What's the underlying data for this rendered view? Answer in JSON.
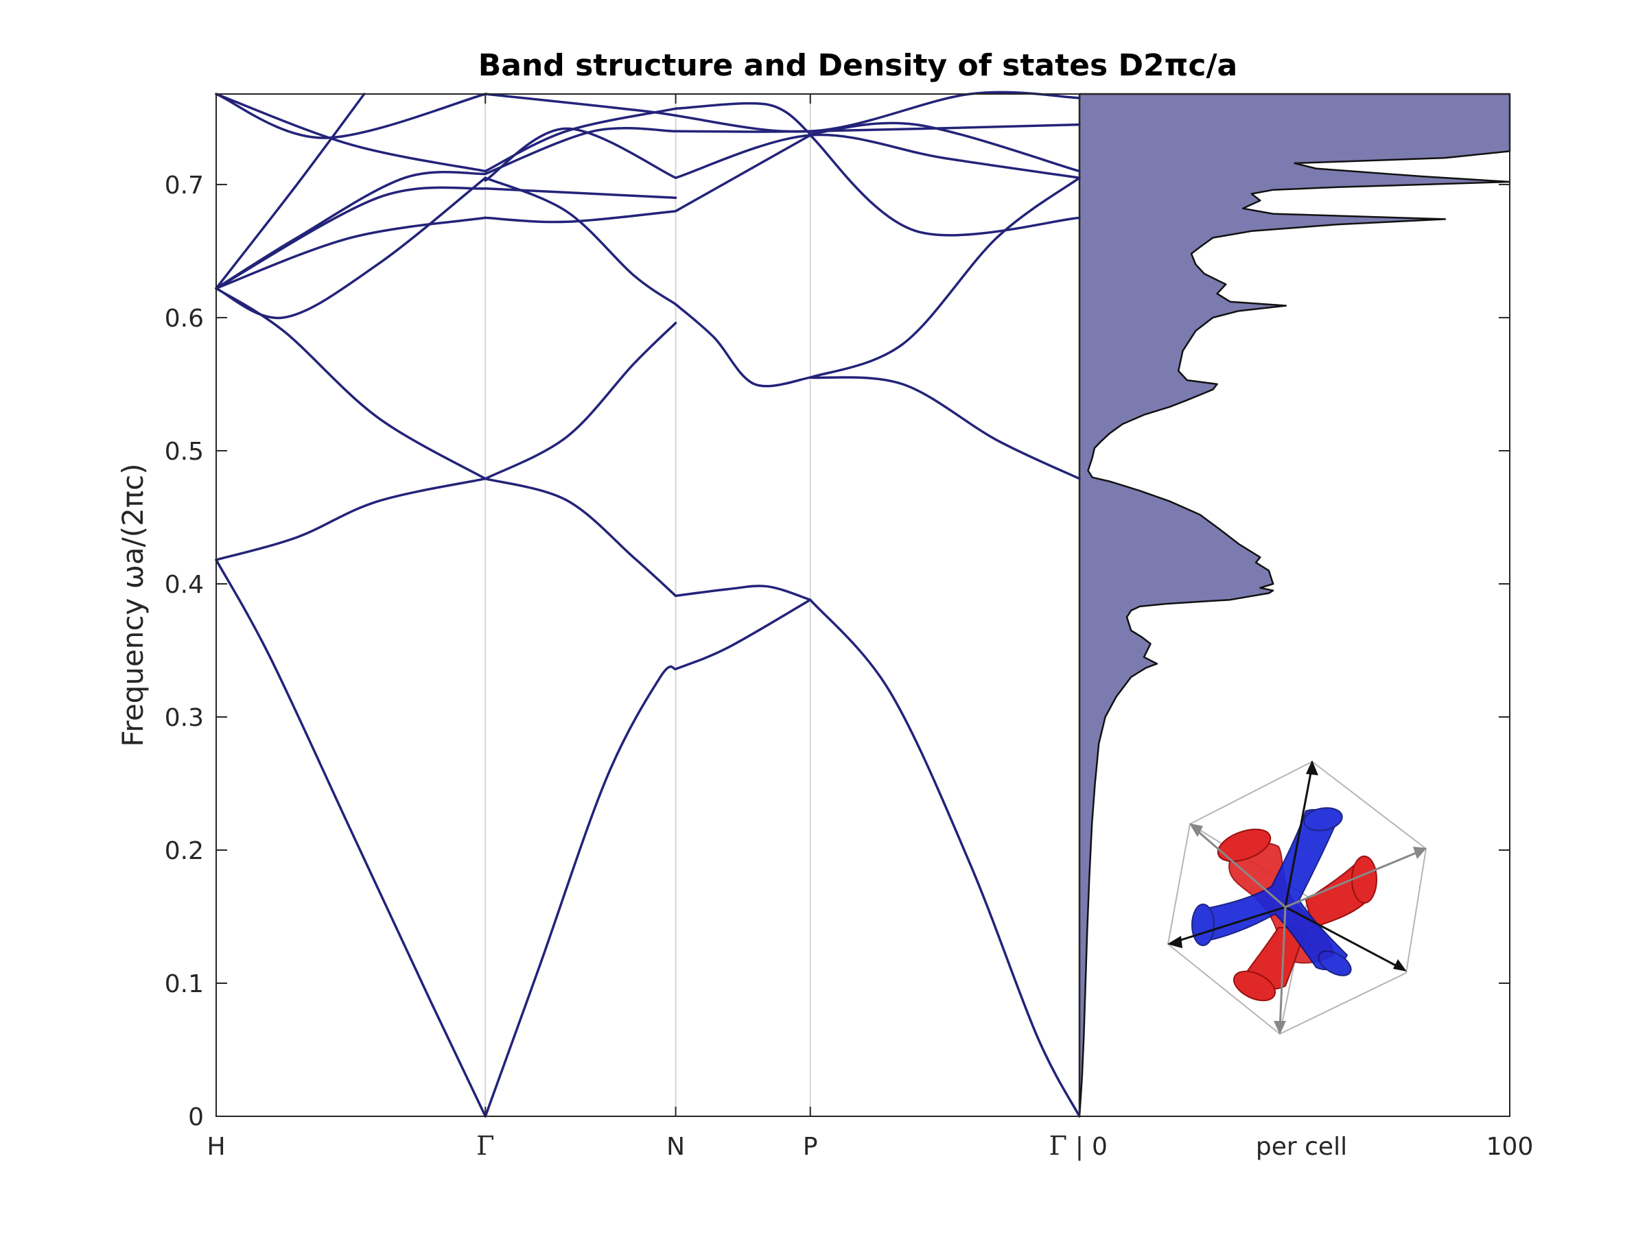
{
  "chart_data": {
    "type": "line",
    "title": "Band structure and Density of states D2πc/a",
    "ylabel": "Frequency ωa/(2πc)",
    "ylim": [
      0,
      0.768
    ],
    "yticks": [
      "0",
      "0.1",
      "0.2",
      "0.3",
      "0.4",
      "0.5",
      "0.6",
      "0.7"
    ],
    "ytick_values": [
      0,
      0.1,
      0.2,
      0.3,
      0.4,
      0.5,
      0.6,
      0.7
    ],
    "band_panel": {
      "kpoints": [
        "H",
        "Γ",
        "N",
        "P",
        "Γ"
      ],
      "kpositions": [
        0,
        1.0,
        1.7071,
        2.2071,
        3.2071
      ],
      "grid": "vertical lines at Γ, N, P",
      "series": [
        {
          "x": [
            0,
            0.2,
            0.5,
            0.8,
            1.0
          ],
          "y": [
            0.418,
            0.345,
            0.215,
            0.085,
            0.0
          ]
        },
        {
          "x": [
            1.0,
            1.2,
            1.45,
            1.65,
            1.7071
          ],
          "y": [
            0.0,
            0.112,
            0.254,
            0.33,
            0.336
          ]
        },
        {
          "x": [
            1.7071,
            1.9,
            2.2071
          ],
          "y": [
            0.336,
            0.352,
            0.388
          ]
        },
        {
          "x": [
            2.2071,
            2.5,
            2.8,
            3.05,
            3.2071
          ],
          "y": [
            0.388,
            0.32,
            0.19,
            0.06,
            0.0
          ]
        },
        {
          "x": [
            0,
            0.3,
            0.6,
            1.0
          ],
          "y": [
            0.418,
            0.435,
            0.462,
            0.479
          ]
        },
        {
          "x": [
            1.0,
            1.3,
            1.55,
            1.7071
          ],
          "y": [
            0.479,
            0.463,
            0.42,
            0.391
          ]
        },
        {
          "x": [
            1.7071,
            1.9,
            2.05,
            2.2071
          ],
          "y": [
            0.391,
            0.396,
            0.398,
            0.388
          ]
        },
        {
          "x": [
            0,
            0.25,
            0.6,
            1.0
          ],
          "y": [
            0.622,
            0.59,
            0.525,
            0.479
          ]
        },
        {
          "x": [
            1.0,
            1.3,
            1.55,
            1.7071
          ],
          "y": [
            0.479,
            0.51,
            0.565,
            0.596
          ]
        },
        {
          "x": [
            2.2071,
            2.55,
            2.9,
            3.2071
          ],
          "y": [
            0.555,
            0.55,
            0.508,
            0.479
          ]
        },
        {
          "x": [
            0,
            0.25,
            0.6,
            1.0
          ],
          "y": [
            0.622,
            0.6,
            0.64,
            0.705
          ]
        },
        {
          "x": [
            1.0,
            1.3,
            1.55,
            1.7071
          ],
          "y": [
            0.705,
            0.68,
            0.632,
            0.61
          ]
        },
        {
          "x": [
            1.7071,
            1.85,
            2.0,
            2.2071
          ],
          "y": [
            0.61,
            0.585,
            0.55,
            0.555
          ]
        },
        {
          "x": [
            2.2071,
            2.55,
            2.9,
            3.2071
          ],
          "y": [
            0.555,
            0.58,
            0.66,
            0.705
          ]
        },
        {
          "x": [
            0,
            0.5,
            1.0
          ],
          "y": [
            0.622,
            0.66,
            0.675
          ]
        },
        {
          "x": [
            1.0,
            1.3,
            1.7071
          ],
          "y": [
            0.675,
            0.672,
            0.68
          ]
        },
        {
          "x": [
            1.7071,
            2.2071
          ],
          "y": [
            0.68,
            0.737
          ]
        },
        {
          "x": [
            2.2071,
            2.6,
            3.2071
          ],
          "y": [
            0.737,
            0.665,
            0.675
          ]
        },
        {
          "x": [
            0,
            0.6,
            1.0
          ],
          "y": [
            0.622,
            0.69,
            0.697
          ]
        },
        {
          "x": [
            1.0,
            1.7071
          ],
          "y": [
            0.697,
            0.69
          ]
        },
        {
          "x": [
            0,
            0.3,
            0.7,
            1.0
          ],
          "y": [
            0.622,
            0.66,
            0.705,
            0.708
          ]
        },
        {
          "x": [
            1.0,
            1.4,
            1.7071
          ],
          "y": [
            0.708,
            0.74,
            0.74
          ]
        },
        {
          "x": [
            1.7071,
            2.2071,
            3.2071
          ],
          "y": [
            0.74,
            0.74,
            0.745
          ]
        },
        {
          "x": [
            0,
            0.5,
            1.0
          ],
          "y": [
            0.768,
            0.73,
            0.71
          ]
        },
        {
          "x": [
            1.0,
            1.3,
            1.7071
          ],
          "y": [
            0.71,
            0.74,
            0.757
          ]
        },
        {
          "x": [
            1.7071,
            2.05,
            2.2071
          ],
          "y": [
            0.757,
            0.76,
            0.738
          ]
        },
        {
          "x": [
            2.2071,
            2.6,
            3.2071
          ],
          "y": [
            0.738,
            0.745,
            0.71
          ]
        },
        {
          "x": [
            0,
            0.3,
            0.55
          ],
          "y": [
            0.622,
            0.7,
            0.768
          ]
        },
        {
          "x": [
            1.0,
            1.3,
            1.7071
          ],
          "y": [
            0.703,
            0.742,
            0.705
          ]
        },
        {
          "x": [
            1.7071,
            2.2071,
            2.7,
            3.2071
          ],
          "y": [
            0.705,
            0.737,
            0.72,
            0.705
          ]
        },
        {
          "x": [
            0,
            0.4,
            1.0
          ],
          "y": [
            0.768,
            0.735,
            0.768
          ]
        },
        {
          "x": [
            1.0,
            1.6,
            2.2071,
            2.8,
            3.2071
          ],
          "y": [
            0.768,
            0.755,
            0.74,
            0.768,
            0.765
          ]
        }
      ]
    },
    "dos_panel": {
      "type": "area",
      "xlim": [
        0,
        100
      ],
      "xlabel": "per cell",
      "xticks": [
        "0",
        "100"
      ],
      "points": [
        [
          0,
          0
        ],
        [
          0.2,
          0.01
        ],
        [
          0.6,
          0.03
        ],
        [
          1.0,
          0.06
        ],
        [
          1.4,
          0.1
        ],
        [
          1.8,
          0.14
        ],
        [
          2.3,
          0.18
        ],
        [
          2.9,
          0.22
        ],
        [
          3.6,
          0.25
        ],
        [
          4.5,
          0.28
        ],
        [
          6.0,
          0.3
        ],
        [
          8.5,
          0.315
        ],
        [
          12,
          0.33
        ],
        [
          15.5,
          0.337
        ],
        [
          18,
          0.34
        ],
        [
          15,
          0.345
        ],
        [
          16.5,
          0.355
        ],
        [
          14.5,
          0.36
        ],
        [
          12,
          0.365
        ],
        [
          11,
          0.375
        ],
        [
          12,
          0.38
        ],
        [
          14,
          0.383
        ],
        [
          20,
          0.385
        ],
        [
          35,
          0.388
        ],
        [
          44,
          0.393
        ],
        [
          45,
          0.395
        ],
        [
          42,
          0.397
        ],
        [
          45,
          0.4
        ],
        [
          44,
          0.41
        ],
        [
          41,
          0.416
        ],
        [
          42,
          0.42
        ],
        [
          37,
          0.43
        ],
        [
          33,
          0.44
        ],
        [
          28,
          0.452
        ],
        [
          21,
          0.462
        ],
        [
          14,
          0.47
        ],
        [
          7,
          0.477
        ],
        [
          3,
          0.48
        ],
        [
          2,
          0.485
        ],
        [
          3,
          0.495
        ],
        [
          3.5,
          0.502
        ],
        [
          5,
          0.507
        ],
        [
          7,
          0.513
        ],
        [
          10,
          0.52
        ],
        [
          15,
          0.527
        ],
        [
          21,
          0.533
        ],
        [
          25,
          0.538
        ],
        [
          28,
          0.542
        ],
        [
          31,
          0.546
        ],
        [
          32,
          0.55
        ],
        [
          25,
          0.553
        ],
        [
          23,
          0.56
        ],
        [
          24,
          0.575
        ],
        [
          27,
          0.59
        ],
        [
          31,
          0.6
        ],
        [
          37,
          0.605
        ],
        [
          48,
          0.609
        ],
        [
          35,
          0.612
        ],
        [
          32,
          0.618
        ],
        [
          34,
          0.625
        ],
        [
          29,
          0.633
        ],
        [
          27,
          0.64
        ],
        [
          26,
          0.648
        ],
        [
          28,
          0.653
        ],
        [
          31,
          0.66
        ],
        [
          40,
          0.665
        ],
        [
          60,
          0.67
        ],
        [
          85,
          0.674
        ],
        [
          65,
          0.676
        ],
        [
          45,
          0.678
        ],
        [
          38,
          0.682
        ],
        [
          42,
          0.688
        ],
        [
          40,
          0.693
        ],
        [
          45,
          0.696
        ],
        [
          60,
          0.698
        ],
        [
          100,
          0.702
        ],
        [
          80,
          0.706
        ],
        [
          55,
          0.712
        ],
        [
          50,
          0.716
        ],
        [
          85,
          0.72
        ],
        [
          100,
          0.725
        ],
        [
          100,
          0.768
        ]
      ]
    },
    "inset": "3D unit cell with red and blue network surfaces"
  }
}
